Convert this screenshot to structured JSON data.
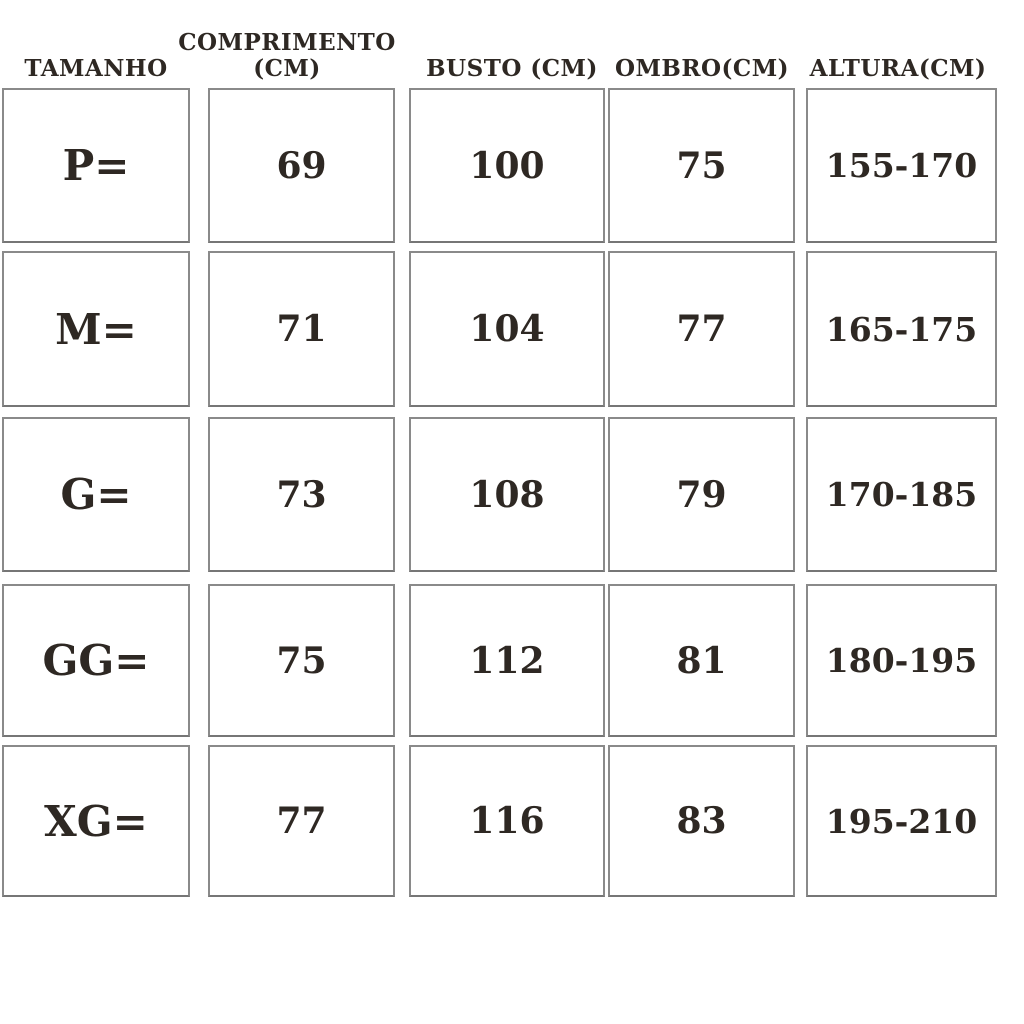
{
  "colors": {
    "text": "#2e2823",
    "border": "#8a8a8a",
    "background": "#ffffff"
  },
  "chart_data": {
    "type": "table",
    "title": "",
    "columns": [
      "TAMANHO",
      "COMPRIMENTO (CM)",
      "BUSTO (CM)",
      "OMBRO(CM)",
      "ALTURA(CM)"
    ],
    "column_headers": [
      [
        "TAMANHO"
      ],
      [
        "COMPRIMENTO",
        "(CM)"
      ],
      [
        "BUSTO (CM)"
      ],
      [
        "OMBRO(CM)"
      ],
      [
        "ALTURA(CM)"
      ]
    ],
    "rows": [
      [
        "P=",
        "69",
        "100",
        "75",
        "155-170"
      ],
      [
        "M=",
        "71",
        "104",
        "77",
        "165-175"
      ],
      [
        "G=",
        "73",
        "108",
        "79",
        "170-185"
      ],
      [
        "GG=",
        "75",
        "112",
        "81",
        "180-195"
      ],
      [
        "XG=",
        "77",
        "116",
        "83",
        "195-210"
      ]
    ]
  }
}
